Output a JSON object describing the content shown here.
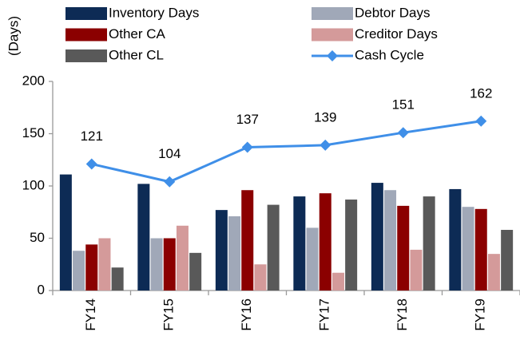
{
  "chart_data": {
    "type": "bar",
    "y_label": "(Days)",
    "categories": [
      "FY14",
      "FY15",
      "FY16",
      "FY17",
      "FY18",
      "FY19"
    ],
    "ylim": [
      0,
      200
    ],
    "yticks": [
      0,
      50,
      100,
      150,
      200
    ],
    "series": [
      {
        "name": "Inventory Days",
        "color": "#0d2b55",
        "values": [
          111,
          102,
          77,
          90,
          103,
          97
        ]
      },
      {
        "name": "Debtor Days",
        "color": "#a0a8b8",
        "values": [
          38,
          50,
          71,
          60,
          96,
          80
        ]
      },
      {
        "name": "Other CA",
        "color": "#8b0000",
        "values": [
          44,
          50,
          96,
          93,
          81,
          78
        ]
      },
      {
        "name": "Creditor Days",
        "color": "#d49a9a",
        "values": [
          50,
          62,
          25,
          17,
          39,
          35
        ]
      },
      {
        "name": "Other CL",
        "color": "#595959",
        "values": [
          22,
          36,
          82,
          87,
          90,
          58
        ]
      },
      {
        "name": "Cash Cycle",
        "type": "line",
        "color": "#3f8fe8",
        "values": [
          121,
          104,
          137,
          139,
          151,
          162
        ]
      }
    ]
  }
}
